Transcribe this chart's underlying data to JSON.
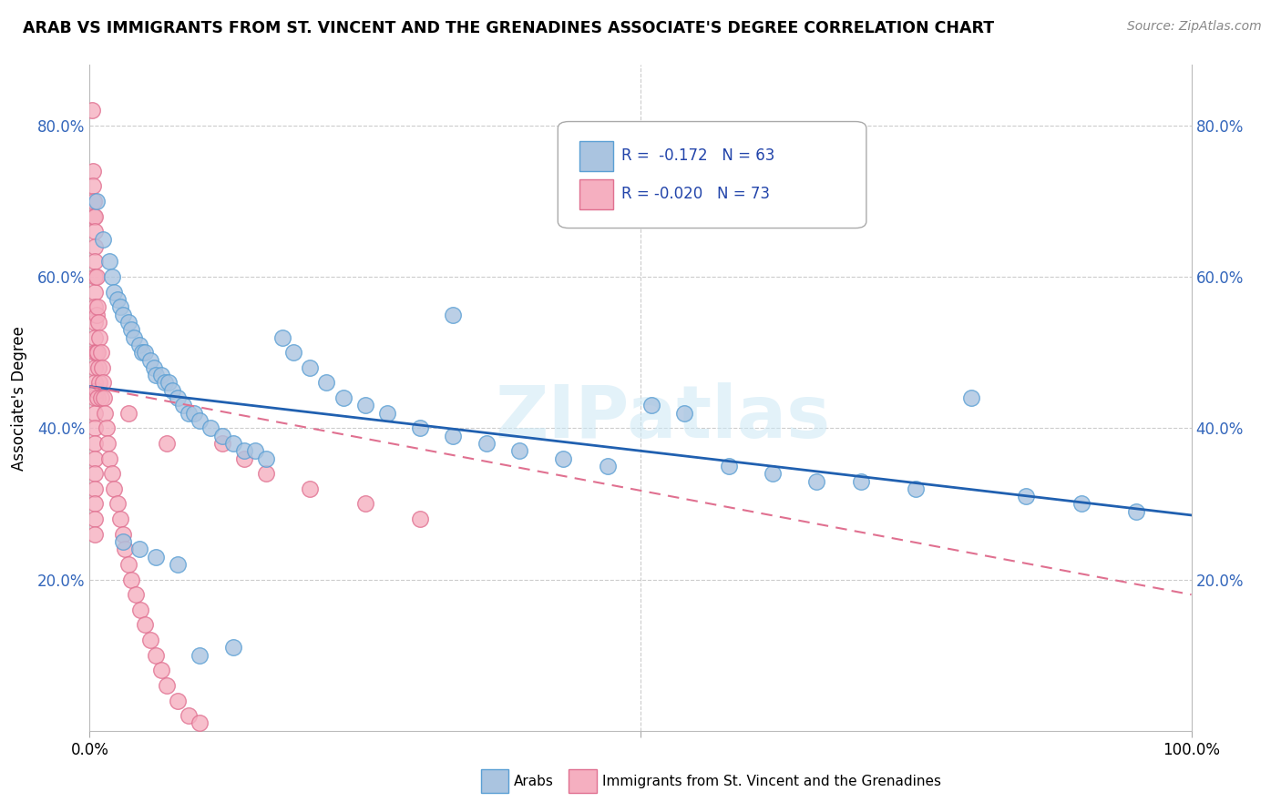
{
  "title": "ARAB VS IMMIGRANTS FROM ST. VINCENT AND THE GRENADINES ASSOCIATE'S DEGREE CORRELATION CHART",
  "source": "Source: ZipAtlas.com",
  "ylabel": "Associate's Degree",
  "xlim": [
    0,
    1.0
  ],
  "ylim": [
    0.0,
    0.88
  ],
  "ytick_positions": [
    0.2,
    0.4,
    0.6,
    0.8
  ],
  "ytick_labels": [
    "20.0%",
    "40.0%",
    "60.0%",
    "80.0%"
  ],
  "xtick_positions": [
    0.0,
    0.5,
    1.0
  ],
  "xtick_labels": [
    "0.0%",
    "",
    "100.0%"
  ],
  "watermark": "ZIPatlas",
  "legend_text1": "R =  -0.172  N = 63",
  "legend_text2": "R = -0.020  N = 73",
  "arab_color": "#aac4e0",
  "arab_edge_color": "#5a9fd4",
  "svg_color": "#f5afc0",
  "svg_edge_color": "#e07090",
  "arab_trendline_x": [
    0.0,
    1.0
  ],
  "arab_trendline_y": [
    0.455,
    0.285
  ],
  "svg_trendline_x": [
    0.0,
    1.0
  ],
  "svg_trendline_y": [
    0.455,
    0.18
  ],
  "arab_scatter_x": [
    0.006,
    0.012,
    0.018,
    0.02,
    0.022,
    0.025,
    0.028,
    0.03,
    0.035,
    0.038,
    0.04,
    0.045,
    0.048,
    0.05,
    0.055,
    0.058,
    0.06,
    0.065,
    0.068,
    0.072,
    0.075,
    0.08,
    0.085,
    0.09,
    0.095,
    0.1,
    0.11,
    0.12,
    0.13,
    0.14,
    0.15,
    0.16,
    0.175,
    0.185,
    0.2,
    0.215,
    0.23,
    0.25,
    0.27,
    0.3,
    0.33,
    0.36,
    0.39,
    0.43,
    0.47,
    0.51,
    0.54,
    0.58,
    0.62,
    0.66,
    0.7,
    0.75,
    0.8,
    0.85,
    0.9,
    0.95,
    0.03,
    0.045,
    0.06,
    0.08,
    0.1,
    0.13,
    0.33
  ],
  "arab_scatter_y": [
    0.7,
    0.65,
    0.62,
    0.6,
    0.58,
    0.57,
    0.56,
    0.55,
    0.54,
    0.53,
    0.52,
    0.51,
    0.5,
    0.5,
    0.49,
    0.48,
    0.47,
    0.47,
    0.46,
    0.46,
    0.45,
    0.44,
    0.43,
    0.42,
    0.42,
    0.41,
    0.4,
    0.39,
    0.38,
    0.37,
    0.37,
    0.36,
    0.52,
    0.5,
    0.48,
    0.46,
    0.44,
    0.43,
    0.42,
    0.4,
    0.39,
    0.38,
    0.37,
    0.36,
    0.35,
    0.43,
    0.42,
    0.35,
    0.34,
    0.33,
    0.33,
    0.32,
    0.44,
    0.31,
    0.3,
    0.29,
    0.25,
    0.24,
    0.23,
    0.22,
    0.1,
    0.11,
    0.55
  ],
  "svg_scatter_x": [
    0.002,
    0.003,
    0.003,
    0.004,
    0.004,
    0.005,
    0.005,
    0.005,
    0.005,
    0.005,
    0.005,
    0.005,
    0.005,
    0.005,
    0.005,
    0.005,
    0.005,
    0.005,
    0.005,
    0.005,
    0.005,
    0.005,
    0.005,
    0.005,
    0.005,
    0.005,
    0.005,
    0.006,
    0.006,
    0.006,
    0.006,
    0.007,
    0.007,
    0.007,
    0.008,
    0.008,
    0.009,
    0.009,
    0.01,
    0.01,
    0.011,
    0.012,
    0.013,
    0.014,
    0.015,
    0.016,
    0.018,
    0.02,
    0.022,
    0.025,
    0.028,
    0.03,
    0.032,
    0.035,
    0.038,
    0.042,
    0.046,
    0.05,
    0.055,
    0.06,
    0.065,
    0.07,
    0.08,
    0.09,
    0.1,
    0.12,
    0.14,
    0.16,
    0.2,
    0.25,
    0.3,
    0.035,
    0.07
  ],
  "svg_scatter_y": [
    0.82,
    0.74,
    0.72,
    0.7,
    0.68,
    0.68,
    0.66,
    0.64,
    0.62,
    0.6,
    0.58,
    0.56,
    0.54,
    0.52,
    0.5,
    0.48,
    0.46,
    0.44,
    0.42,
    0.4,
    0.38,
    0.36,
    0.34,
    0.32,
    0.3,
    0.28,
    0.26,
    0.6,
    0.55,
    0.5,
    0.45,
    0.56,
    0.5,
    0.44,
    0.54,
    0.48,
    0.52,
    0.46,
    0.5,
    0.44,
    0.48,
    0.46,
    0.44,
    0.42,
    0.4,
    0.38,
    0.36,
    0.34,
    0.32,
    0.3,
    0.28,
    0.26,
    0.24,
    0.22,
    0.2,
    0.18,
    0.16,
    0.14,
    0.12,
    0.1,
    0.08,
    0.06,
    0.04,
    0.02,
    0.01,
    0.38,
    0.36,
    0.34,
    0.32,
    0.3,
    0.28,
    0.42,
    0.38
  ]
}
